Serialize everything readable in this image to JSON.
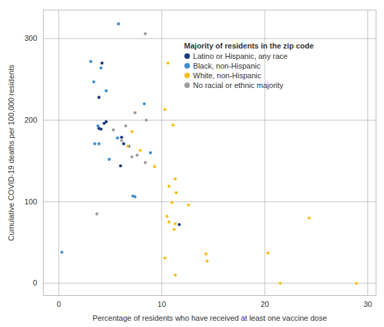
{
  "chart_data": {
    "type": "scatter",
    "x_label": "Percentage of residents who have received at least one vaccine dose",
    "y_label": "Cumulative COVID-19 deaths per 100,000 residents",
    "legend_title": "Majority of residents in the zip code",
    "legend": "top-right",
    "grid": true,
    "xlim": [
      -1.5,
      30.8
    ],
    "ylim": [
      -15,
      335
    ],
    "xticks": [
      0,
      10,
      20,
      30
    ],
    "yticks": [
      0,
      100,
      200,
      300
    ],
    "series": [
      {
        "name": "Latino or Hispanic, any race",
        "color": "#1b3a7a",
        "x": [
          4.2,
          3.9,
          4.4,
          4.1,
          4.6,
          3.9,
          6.1,
          6.0,
          6.8,
          11.7,
          6.3
        ],
        "values": [
          270,
          228,
          196,
          189,
          198,
          190,
          179,
          144,
          168,
          72,
          171
        ]
      },
      {
        "name": "Black, non-Hispanic",
        "color": "#3d8fd1",
        "x": [
          5.8,
          3.1,
          3.4,
          4.1,
          4.6,
          3.5,
          3.9,
          4.9,
          5.7,
          8.3,
          8.9,
          7.2,
          7.4,
          0.3,
          6.8,
          3.8
        ],
        "values": [
          318,
          272,
          247,
          264,
          236,
          171,
          171,
          152,
          178,
          220,
          160,
          107,
          106,
          38,
          168,
          193
        ]
      },
      {
        "name": "White, non-Hispanic",
        "color": "#f5c21b",
        "x": [
          10.6,
          10.3,
          11.1,
          7.1,
          7.9,
          6.7,
          9.3,
          11.3,
          11.4,
          10.7,
          11.0,
          12.6,
          10.5,
          11.3,
          10.7,
          11.2,
          10.3,
          14.3,
          14.4,
          11.3,
          20.3,
          24.3,
          21.5,
          28.9
        ],
        "values": [
          270,
          213,
          194,
          186,
          163,
          168,
          143,
          128,
          111,
          119,
          99,
          96,
          82,
          73,
          75,
          66,
          31,
          36,
          27,
          10,
          37,
          80,
          0,
          0
        ]
      },
      {
        "name": "No racial or ethnic majority",
        "color": "#9e9e9e",
        "x": [
          8.4,
          7.4,
          8.5,
          6.5,
          5.3,
          6.1,
          7.1,
          7.6,
          8.4,
          3.7
        ],
        "values": [
          306,
          209,
          200,
          193,
          188,
          175,
          155,
          157,
          148,
          85
        ]
      }
    ]
  }
}
